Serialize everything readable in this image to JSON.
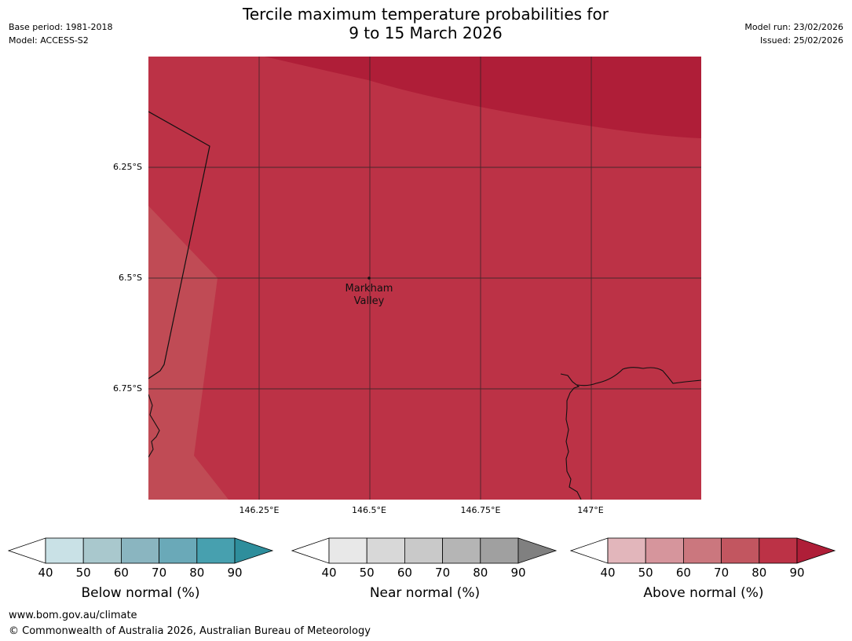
{
  "header": {
    "title_line1": "Tercile maximum temperature probabilities for",
    "title_line2": "9 to 15 March 2026",
    "base_period": "Base period: 1981-2018",
    "model": "Model: ACCESS-S2",
    "model_run": "Model run: 23/02/2026",
    "issued": "Issued: 25/02/2026"
  },
  "map": {
    "latitude_labels": [
      "6.25°S",
      "6.5°S",
      "6.75°S"
    ],
    "longitude_labels": [
      "146.25°E",
      "146.5°E",
      "146.75°E",
      "147°E"
    ],
    "place": {
      "name_line1": "Markham",
      "name_line2": "Valley"
    }
  },
  "legend": {
    "ticks": [
      "40",
      "50",
      "60",
      "70",
      "80",
      "90"
    ],
    "below": {
      "title": "Below normal (%)",
      "colors": [
        "#c9e1e6",
        "#a9c8cd",
        "#8ab5c0",
        "#6aa9b8",
        "#47a0af",
        "#2e8e9c"
      ]
    },
    "near": {
      "title": "Near normal (%)",
      "colors": [
        "#e8e8e8",
        "#d8d8d8",
        "#c9c9c9",
        "#b5b5b5",
        "#a0a0a0",
        "#808080"
      ]
    },
    "above": {
      "title": "Above normal (%)",
      "colors": [
        "#e2b6bb",
        "#d6959c",
        "#cb777e",
        "#c25660",
        "#bc3246",
        "#af1e38"
      ]
    }
  },
  "footer": {
    "url": "www.bom.gov.au/climate",
    "copyright": "© Commonwealth of Australia 2026, Australian Bureau of Meteorology"
  }
}
